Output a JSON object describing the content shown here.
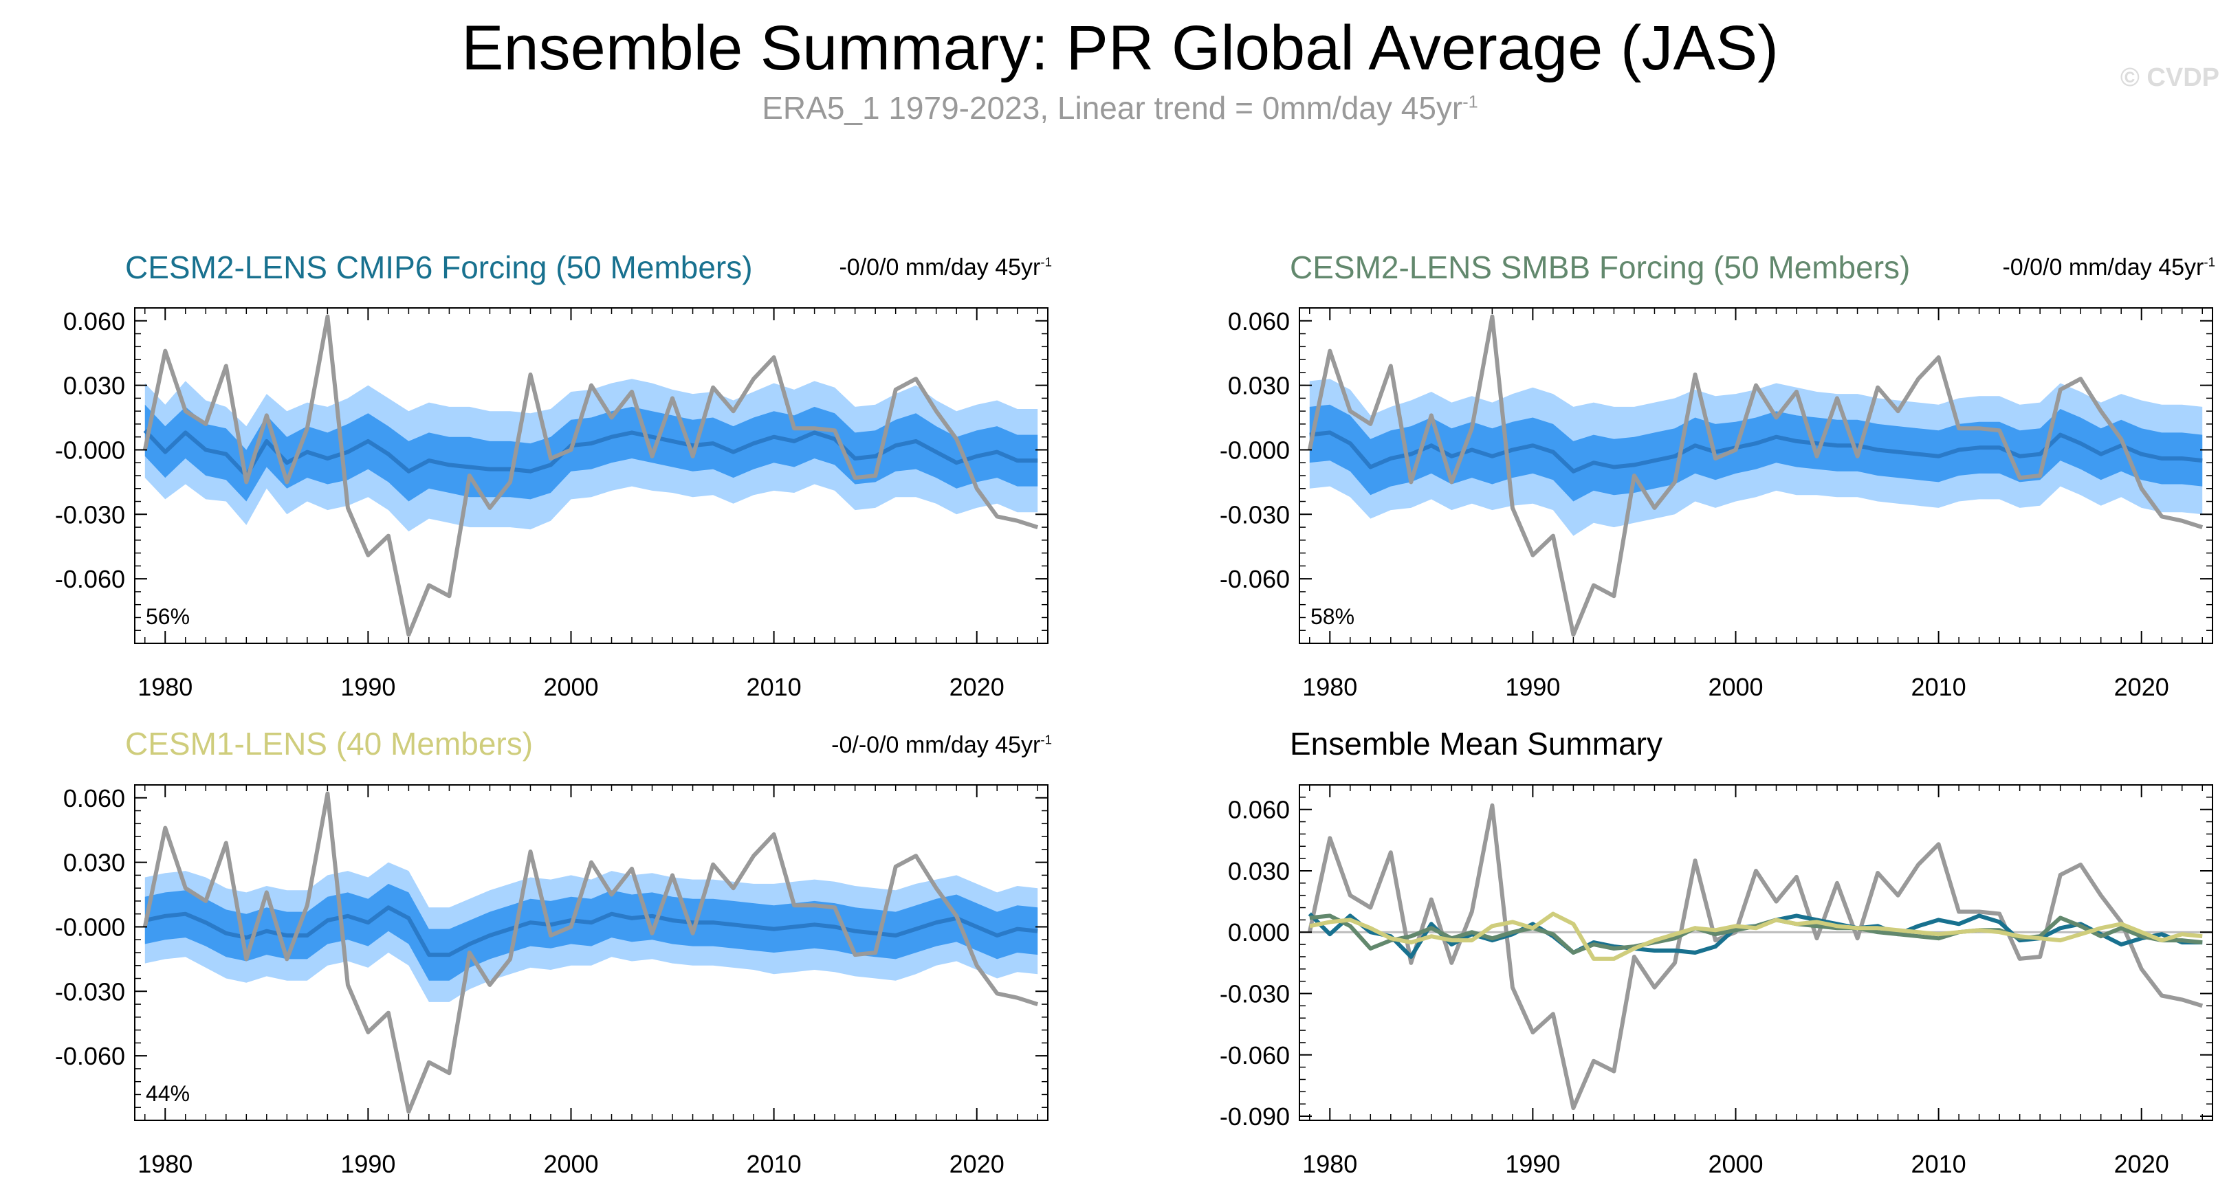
{
  "figure": {
    "title": "Ensemble Summary: PR Global Average (JAS)",
    "subtitle_main": "ERA5_1 1979-2023, Linear trend = 0mm/day 45yr",
    "subtitle_sup": "-1",
    "watermark": "© CVDP"
  },
  "colors": {
    "band_outer": "#a9d4ff",
    "band_inner": "#3f9bf2",
    "ens_mean": "#2a7ac8",
    "observed": "#999999",
    "cesm2_cmip6": "#18718f",
    "cesm2_smbb": "#62886d",
    "cesm1": "#cfcd7c"
  },
  "chart_data": [
    {
      "type": "area",
      "id": "p1",
      "title": "CESM2-LENS CMIP6 Forcing (50 Members)",
      "title_color": "#18718f",
      "trend_text": "-0/0/0 mm/day 45yr",
      "trend_sup": "-1",
      "percent_label": "56%",
      "xlim": [
        1978.5,
        2023.5
      ],
      "ylim": [
        -0.09,
        0.066
      ],
      "yticks": [
        0.06,
        0.03,
        0.0,
        -0.03,
        -0.06
      ],
      "ytick_labels": [
        "0.060",
        "0.030",
        "-0.000",
        "-0.030",
        "-0.060"
      ],
      "xticks": [
        1980,
        1990,
        2000,
        2010,
        2020
      ],
      "xtick_labels": [
        "1980",
        "1990",
        "2000",
        "2010",
        "2020"
      ],
      "x_start": 1979,
      "ens_mean": [
        0.009,
        -0.001,
        0.008,
        0.0,
        -0.002,
        -0.012,
        0.004,
        -0.006,
        -0.001,
        -0.004,
        -0.001,
        0.004,
        -0.002,
        -0.01,
        -0.005,
        -0.007,
        -0.008,
        -0.009,
        -0.009,
        -0.01,
        -0.007,
        0.002,
        0.003,
        0.006,
        0.008,
        0.006,
        0.004,
        0.002,
        0.003,
        -0.001,
        0.003,
        0.006,
        0.004,
        0.008,
        0.005,
        -0.004,
        -0.003,
        0.002,
        0.004,
        -0.001,
        -0.006,
        -0.003,
        -0.001,
        -0.005,
        -0.005
      ],
      "inner_spread": [
        0.012,
        0.012,
        0.012,
        0.012,
        0.012,
        0.012,
        0.012,
        0.012,
        0.012,
        0.012,
        0.013,
        0.013,
        0.013,
        0.014,
        0.013,
        0.013,
        0.014,
        0.013,
        0.013,
        0.013,
        0.013,
        0.012,
        0.012,
        0.012,
        0.012,
        0.012,
        0.012,
        0.012,
        0.012,
        0.012,
        0.012,
        0.012,
        0.012,
        0.012,
        0.012,
        0.012,
        0.012,
        0.012,
        0.013,
        0.012,
        0.012,
        0.012,
        0.012,
        0.012,
        0.012
      ],
      "outer_spread": [
        0.022,
        0.022,
        0.024,
        0.023,
        0.022,
        0.023,
        0.022,
        0.024,
        0.023,
        0.024,
        0.025,
        0.026,
        0.026,
        0.028,
        0.027,
        0.027,
        0.028,
        0.027,
        0.027,
        0.027,
        0.026,
        0.025,
        0.025,
        0.025,
        0.025,
        0.025,
        0.024,
        0.024,
        0.024,
        0.024,
        0.024,
        0.025,
        0.024,
        0.024,
        0.024,
        0.024,
        0.024,
        0.024,
        0.026,
        0.024,
        0.024,
        0.024,
        0.024,
        0.024,
        0.024
      ],
      "observed": [
        0.0,
        0.046,
        0.018,
        0.012,
        0.039,
        -0.015,
        0.016,
        -0.015,
        0.01,
        0.062,
        -0.027,
        -0.049,
        -0.04,
        -0.086,
        -0.063,
        -0.068,
        -0.012,
        -0.027,
        -0.015,
        0.035,
        -0.004,
        0.0,
        0.03,
        0.015,
        0.027,
        -0.003,
        0.024,
        -0.003,
        0.029,
        0.018,
        0.033,
        0.043,
        0.01,
        0.01,
        0.009,
        -0.013,
        -0.012,
        0.028,
        0.033,
        0.018,
        0.005,
        -0.018,
        -0.031,
        -0.033,
        -0.036
      ]
    },
    {
      "type": "area",
      "id": "p2",
      "title": "CESM2-LENS SMBB Forcing (50 Members)",
      "title_color": "#62886d",
      "trend_text": "-0/0/0 mm/day 45yr",
      "trend_sup": "-1",
      "percent_label": "58%",
      "xlim": [
        1978.5,
        2023.5
      ],
      "ylim": [
        -0.09,
        0.066
      ],
      "yticks": [
        0.06,
        0.03,
        0.0,
        -0.03,
        -0.06
      ],
      "ytick_labels": [
        "0.060",
        "0.030",
        "-0.000",
        "-0.030",
        "-0.060"
      ],
      "xticks": [
        1980,
        1990,
        2000,
        2010,
        2020
      ],
      "xtick_labels": [
        "1980",
        "1990",
        "2000",
        "2010",
        "2020"
      ],
      "x_start": 1979,
      "ens_mean": [
        0.007,
        0.008,
        0.003,
        -0.008,
        -0.004,
        -0.002,
        0.002,
        -0.003,
        0.0,
        -0.003,
        0.0,
        0.002,
        -0.001,
        -0.01,
        -0.006,
        -0.008,
        -0.007,
        -0.005,
        -0.003,
        0.002,
        -0.001,
        0.001,
        0.003,
        0.006,
        0.004,
        0.003,
        0.002,
        0.002,
        0.0,
        -0.001,
        -0.002,
        -0.003,
        0.0,
        0.001,
        0.001,
        -0.003,
        -0.002,
        0.007,
        0.003,
        -0.002,
        0.002,
        -0.002,
        -0.004,
        -0.004,
        -0.005
      ],
      "inner_spread": [
        0.013,
        0.013,
        0.013,
        0.013,
        0.013,
        0.013,
        0.013,
        0.013,
        0.013,
        0.013,
        0.013,
        0.013,
        0.013,
        0.014,
        0.013,
        0.013,
        0.013,
        0.013,
        0.013,
        0.013,
        0.013,
        0.012,
        0.012,
        0.012,
        0.012,
        0.012,
        0.012,
        0.012,
        0.012,
        0.012,
        0.012,
        0.012,
        0.012,
        0.012,
        0.012,
        0.012,
        0.012,
        0.012,
        0.012,
        0.012,
        0.012,
        0.012,
        0.012,
        0.012,
        0.012
      ],
      "outer_spread": [
        0.025,
        0.025,
        0.025,
        0.024,
        0.024,
        0.025,
        0.025,
        0.025,
        0.025,
        0.025,
        0.026,
        0.027,
        0.027,
        0.03,
        0.028,
        0.028,
        0.027,
        0.027,
        0.027,
        0.026,
        0.026,
        0.025,
        0.025,
        0.025,
        0.025,
        0.024,
        0.024,
        0.024,
        0.024,
        0.024,
        0.024,
        0.024,
        0.024,
        0.024,
        0.024,
        0.024,
        0.024,
        0.024,
        0.024,
        0.024,
        0.024,
        0.025,
        0.025,
        0.025,
        0.025
      ],
      "observed": [
        0.0,
        0.046,
        0.018,
        0.012,
        0.039,
        -0.015,
        0.016,
        -0.015,
        0.01,
        0.062,
        -0.027,
        -0.049,
        -0.04,
        -0.086,
        -0.063,
        -0.068,
        -0.012,
        -0.027,
        -0.015,
        0.035,
        -0.004,
        0.0,
        0.03,
        0.015,
        0.027,
        -0.003,
        0.024,
        -0.003,
        0.029,
        0.018,
        0.033,
        0.043,
        0.01,
        0.01,
        0.009,
        -0.013,
        -0.012,
        0.028,
        0.033,
        0.018,
        0.005,
        -0.018,
        -0.031,
        -0.033,
        -0.036
      ]
    },
    {
      "type": "area",
      "id": "p3",
      "title": "CESM1-LENS (40 Members)",
      "title_color": "#cfcd7c",
      "trend_text": "-0/-0/0 mm/day 45yr",
      "trend_sup": "-1",
      "percent_label": "44%",
      "xlim": [
        1978.5,
        2023.5
      ],
      "ylim": [
        -0.09,
        0.066
      ],
      "yticks": [
        0.06,
        0.03,
        0.0,
        -0.03,
        -0.06
      ],
      "ytick_labels": [
        "0.060",
        "0.030",
        "-0.000",
        "-0.030",
        "-0.060"
      ],
      "xticks": [
        1980,
        1990,
        2000,
        2010,
        2020
      ],
      "xtick_labels": [
        "1980",
        "1990",
        "2000",
        "2010",
        "2020"
      ],
      "x_start": 1979,
      "ens_mean": [
        0.003,
        0.005,
        0.006,
        0.002,
        -0.003,
        -0.005,
        -0.002,
        -0.004,
        -0.004,
        0.003,
        0.005,
        0.002,
        0.009,
        0.004,
        -0.013,
        -0.013,
        -0.008,
        -0.004,
        -0.001,
        0.002,
        0.001,
        0.003,
        0.002,
        0.006,
        0.004,
        0.005,
        0.003,
        0.002,
        0.002,
        0.001,
        0.0,
        -0.001,
        0.0,
        0.001,
        0.0,
        -0.002,
        -0.003,
        -0.004,
        -0.001,
        0.002,
        0.004,
        0.0,
        -0.004,
        -0.001,
        -0.002
      ],
      "inner_spread": [
        0.011,
        0.011,
        0.011,
        0.011,
        0.011,
        0.011,
        0.011,
        0.011,
        0.011,
        0.011,
        0.011,
        0.011,
        0.011,
        0.012,
        0.012,
        0.012,
        0.011,
        0.011,
        0.011,
        0.011,
        0.011,
        0.011,
        0.011,
        0.011,
        0.011,
        0.011,
        0.011,
        0.011,
        0.011,
        0.011,
        0.011,
        0.011,
        0.011,
        0.011,
        0.011,
        0.011,
        0.011,
        0.011,
        0.011,
        0.011,
        0.011,
        0.011,
        0.011,
        0.011,
        0.011
      ],
      "outer_spread": [
        0.02,
        0.02,
        0.02,
        0.021,
        0.021,
        0.021,
        0.021,
        0.021,
        0.021,
        0.021,
        0.021,
        0.021,
        0.021,
        0.022,
        0.022,
        0.022,
        0.021,
        0.021,
        0.021,
        0.021,
        0.021,
        0.021,
        0.02,
        0.02,
        0.02,
        0.02,
        0.02,
        0.02,
        0.02,
        0.02,
        0.02,
        0.021,
        0.021,
        0.021,
        0.021,
        0.021,
        0.021,
        0.021,
        0.021,
        0.02,
        0.02,
        0.02,
        0.02,
        0.02,
        0.02
      ],
      "observed": [
        0.0,
        0.046,
        0.018,
        0.012,
        0.039,
        -0.015,
        0.016,
        -0.015,
        0.01,
        0.062,
        -0.027,
        -0.049,
        -0.04,
        -0.086,
        -0.063,
        -0.068,
        -0.012,
        -0.027,
        -0.015,
        0.035,
        -0.004,
        0.0,
        0.03,
        0.015,
        0.027,
        -0.003,
        0.024,
        -0.003,
        0.029,
        0.018,
        0.033,
        0.043,
        0.01,
        0.01,
        0.009,
        -0.013,
        -0.012,
        0.028,
        0.033,
        0.018,
        0.005,
        -0.018,
        -0.031,
        -0.033,
        -0.036
      ]
    },
    {
      "type": "line",
      "id": "p4",
      "title": "Ensemble Mean Summary",
      "title_color": "#000000",
      "xlim": [
        1978.5,
        2023.5
      ],
      "ylim": [
        -0.092,
        0.072
      ],
      "yticks": [
        0.06,
        0.03,
        0.0,
        -0.03,
        -0.06,
        -0.09
      ],
      "ytick_labels": [
        "0.060",
        "0.030",
        "0.000",
        "-0.030",
        "-0.060",
        "-0.090"
      ],
      "xticks": [
        1980,
        1990,
        2000,
        2010,
        2020
      ],
      "xtick_labels": [
        "1980",
        "1990",
        "2000",
        "2010",
        "2020"
      ],
      "x_start": 1979,
      "zero_line": true,
      "series": [
        {
          "name": "ERA5_1",
          "color_key": "observed",
          "values": [
            0.0,
            0.046,
            0.018,
            0.012,
            0.039,
            -0.015,
            0.016,
            -0.015,
            0.01,
            0.062,
            -0.027,
            -0.049,
            -0.04,
            -0.086,
            -0.063,
            -0.068,
            -0.012,
            -0.027,
            -0.015,
            0.035,
            -0.004,
            0.0,
            0.03,
            0.015,
            0.027,
            -0.003,
            0.024,
            -0.003,
            0.029,
            0.018,
            0.033,
            0.043,
            0.01,
            0.01,
            0.009,
            -0.013,
            -0.012,
            0.028,
            0.033,
            0.018,
            0.005,
            -0.018,
            -0.031,
            -0.033,
            -0.036
          ]
        },
        {
          "name": "CESM2-LENS CMIP6 Forcing",
          "color_key": "cesm2_cmip6",
          "values": [
            0.009,
            -0.001,
            0.008,
            0.0,
            -0.002,
            -0.012,
            0.004,
            -0.006,
            -0.001,
            -0.004,
            -0.001,
            0.004,
            -0.002,
            -0.01,
            -0.005,
            -0.007,
            -0.008,
            -0.009,
            -0.009,
            -0.01,
            -0.007,
            0.002,
            0.003,
            0.006,
            0.008,
            0.006,
            0.004,
            0.002,
            0.003,
            -0.001,
            0.003,
            0.006,
            0.004,
            0.008,
            0.005,
            -0.004,
            -0.003,
            0.002,
            0.004,
            -0.001,
            -0.006,
            -0.003,
            -0.001,
            -0.005,
            -0.005
          ]
        },
        {
          "name": "CESM2-LENS SMBB Forcing",
          "color_key": "cesm2_smbb",
          "values": [
            0.007,
            0.008,
            0.003,
            -0.008,
            -0.004,
            -0.002,
            0.002,
            -0.003,
            0.0,
            -0.003,
            0.0,
            0.002,
            -0.001,
            -0.01,
            -0.006,
            -0.008,
            -0.007,
            -0.005,
            -0.003,
            0.002,
            -0.001,
            0.001,
            0.003,
            0.006,
            0.004,
            0.003,
            0.002,
            0.002,
            0.0,
            -0.001,
            -0.002,
            -0.003,
            0.0,
            0.001,
            0.001,
            -0.003,
            -0.002,
            0.007,
            0.003,
            -0.002,
            0.002,
            -0.002,
            -0.004,
            -0.004,
            -0.005
          ]
        },
        {
          "name": "CESM1-LENS",
          "color_key": "cesm1",
          "values": [
            0.003,
            0.005,
            0.006,
            0.002,
            -0.003,
            -0.005,
            -0.002,
            -0.004,
            -0.004,
            0.003,
            0.005,
            0.002,
            0.009,
            0.004,
            -0.013,
            -0.013,
            -0.008,
            -0.004,
            -0.001,
            0.002,
            0.001,
            0.003,
            0.002,
            0.006,
            0.004,
            0.005,
            0.003,
            0.002,
            0.002,
            0.001,
            0.0,
            -0.001,
            0.0,
            0.001,
            0.0,
            -0.002,
            -0.003,
            -0.004,
            -0.001,
            0.002,
            0.004,
            0.0,
            -0.004,
            -0.001,
            -0.002
          ]
        }
      ]
    }
  ]
}
